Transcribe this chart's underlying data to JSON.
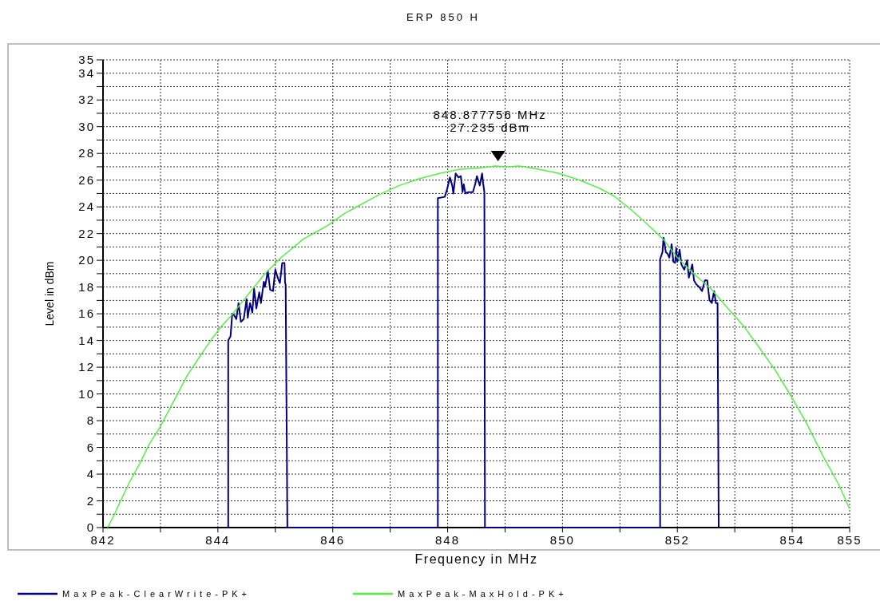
{
  "chart_data": {
    "type": "line",
    "title": "ERP 850 H",
    "xlabel": "Frequency in MHz",
    "ylabel": "Level in dBm",
    "xlim": [
      842,
      855
    ],
    "ylim": [
      0,
      35
    ],
    "xticks": [
      842,
      {
        "value": 843,
        "label": null
      },
      844,
      {
        "value": 845,
        "label": null
      },
      846,
      {
        "value": 847,
        "label": null
      },
      848,
      {
        "value": 849,
        "label": null
      },
      850,
      {
        "value": 851,
        "label": null
      },
      852,
      {
        "value": 853,
        "label": null
      },
      854,
      855
    ],
    "yticks": [
      0,
      {
        "value": 1,
        "label": null
      },
      2,
      {
        "value": 3,
        "label": null
      },
      4,
      {
        "value": 5,
        "label": null
      },
      6,
      {
        "value": 7,
        "label": null
      },
      8,
      {
        "value": 9,
        "label": null
      },
      10,
      {
        "value": 11,
        "label": null
      },
      12,
      {
        "value": 13,
        "label": null
      },
      14,
      {
        "value": 15,
        "label": null
      },
      16,
      {
        "value": 17,
        "label": null
      },
      18,
      {
        "value": 19,
        "label": null
      },
      20,
      {
        "value": 21,
        "label": null
      },
      22,
      {
        "value": 23,
        "label": null
      },
      24,
      {
        "value": 25,
        "label": null
      },
      26,
      {
        "value": 27,
        "label": null
      },
      28,
      {
        "value": 29,
        "label": null
      },
      30,
      {
        "value": 31,
        "label": null
      },
      32,
      {
        "value": 33,
        "label": null
      },
      34,
      35
    ],
    "grid": true,
    "legend": "bottom",
    "marker": "none",
    "line_style": "solid",
    "annotations": [
      {
        "text": "848.877756 MHz\n27.235 dBm",
        "x": 848.877756,
        "y": 27.235
      }
    ],
    "series": [
      {
        "name": "MaxPeak-ClearWrite-PK+",
        "color": "#000080",
        "x": [
          844.18,
          844.18,
          844.22,
          844.25,
          844.28,
          844.32,
          844.36,
          844.4,
          844.45,
          844.5,
          844.52,
          844.56,
          844.6,
          844.63,
          844.67,
          844.72,
          844.75,
          844.8,
          844.82,
          844.87,
          844.91,
          844.96,
          845.0,
          845.05,
          845.08,
          845.12,
          845.16,
          845.17,
          845.18,
          845.21,
          847.83,
          847.83,
          847.95,
          847.99,
          848.04,
          848.08,
          848.1,
          848.14,
          848.19,
          848.23,
          848.26,
          848.28,
          848.31,
          848.36,
          848.44,
          848.48,
          848.51,
          848.56,
          848.6,
          848.62,
          848.64,
          848.65,
          851.7,
          851.7,
          851.74,
          851.76,
          851.8,
          851.83,
          851.86,
          851.9,
          851.93,
          851.96,
          851.98,
          852.0,
          852.04,
          852.07,
          852.12,
          852.17,
          852.2,
          852.26,
          852.29,
          852.33,
          852.38,
          852.43,
          852.48,
          852.52,
          852.56,
          852.6,
          852.64,
          852.67,
          852.7,
          852.72
        ],
        "values": [
          0,
          14.0,
          14.3,
          16.0,
          15.9,
          15.6,
          16.8,
          15.4,
          15.6,
          17.1,
          15.7,
          16.8,
          16.1,
          17.9,
          16.4,
          17.6,
          16.8,
          18.4,
          18.0,
          19.2,
          17.8,
          17.7,
          19.3,
          18.6,
          18.3,
          19.8,
          19.8,
          18.3,
          18.2,
          0,
          0,
          24.65,
          24.75,
          25.3,
          26.2,
          25.6,
          25.0,
          26.5,
          26.2,
          26.3,
          25.1,
          25.7,
          25.0,
          25.1,
          25.1,
          25.7,
          26.3,
          25.6,
          26.5,
          25.7,
          25.1,
          0,
          0,
          20.1,
          20.6,
          21.7,
          20.6,
          20.5,
          20.2,
          21.2,
          19.9,
          19.8,
          20.9,
          19.9,
          20.8,
          19.7,
          19.3,
          20.0,
          18.7,
          19.7,
          18.5,
          18.2,
          18.0,
          17.7,
          18.5,
          18.5,
          17.0,
          16.8,
          17.7,
          16.8,
          16.8,
          0
        ]
      },
      {
        "name": "MaxPeak-MaxHold-PK+",
        "color": "#55ee44",
        "x": [
          842.08,
          842.2,
          842.29,
          842.45,
          842.64,
          842.8,
          842.99,
          843.2,
          843.47,
          843.7,
          843.89,
          844.05,
          844.24,
          844.5,
          844.8,
          845.1,
          845.49,
          845.7,
          845.91,
          846.2,
          846.46,
          846.8,
          847.16,
          847.5,
          847.86,
          848.2,
          848.55,
          848.83,
          849.05,
          849.25,
          849.6,
          849.94,
          850.3,
          850.64,
          850.9,
          851.19,
          851.45,
          851.75,
          852.0,
          852.31,
          852.6,
          852.86,
          853.15,
          853.42,
          853.7,
          853.97,
          854.25,
          854.53,
          854.8,
          855.0
        ],
        "values": [
          0,
          1.0,
          1.85,
          3.3,
          4.8,
          6.2,
          7.5,
          9.2,
          11.4,
          12.9,
          14.1,
          15.0,
          15.9,
          17.3,
          18.9,
          20.2,
          21.6,
          22.1,
          22.6,
          23.5,
          24.1,
          24.9,
          25.6,
          26.1,
          26.5,
          26.8,
          26.9,
          27.06,
          27.0,
          27.06,
          26.8,
          26.5,
          26.0,
          25.4,
          24.8,
          23.8,
          22.8,
          21.6,
          20.2,
          18.9,
          17.8,
          16.5,
          15.1,
          13.5,
          11.8,
          9.9,
          7.8,
          5.4,
          3.3,
          1.4
        ]
      }
    ]
  }
}
